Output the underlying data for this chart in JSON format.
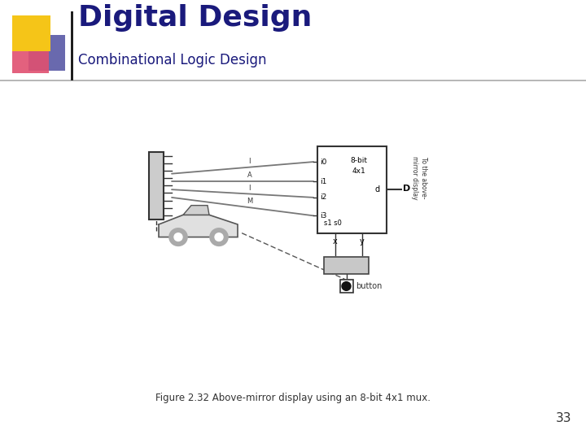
{
  "title": "Digital Design",
  "subtitle": "Combinational Logic Design",
  "title_color": "#1a1a7c",
  "subtitle_color": "#1a1a7c",
  "background_color": "#ffffff",
  "page_number": "33",
  "caption": "Figure 2.32 Above-mirror display using an 8-bit 4x1 mux.",
  "logo_yellow": "#f5c518",
  "logo_red": "#e05070",
  "logo_blue": "#2a2a8c",
  "header_line_color": "#aaaaaa"
}
